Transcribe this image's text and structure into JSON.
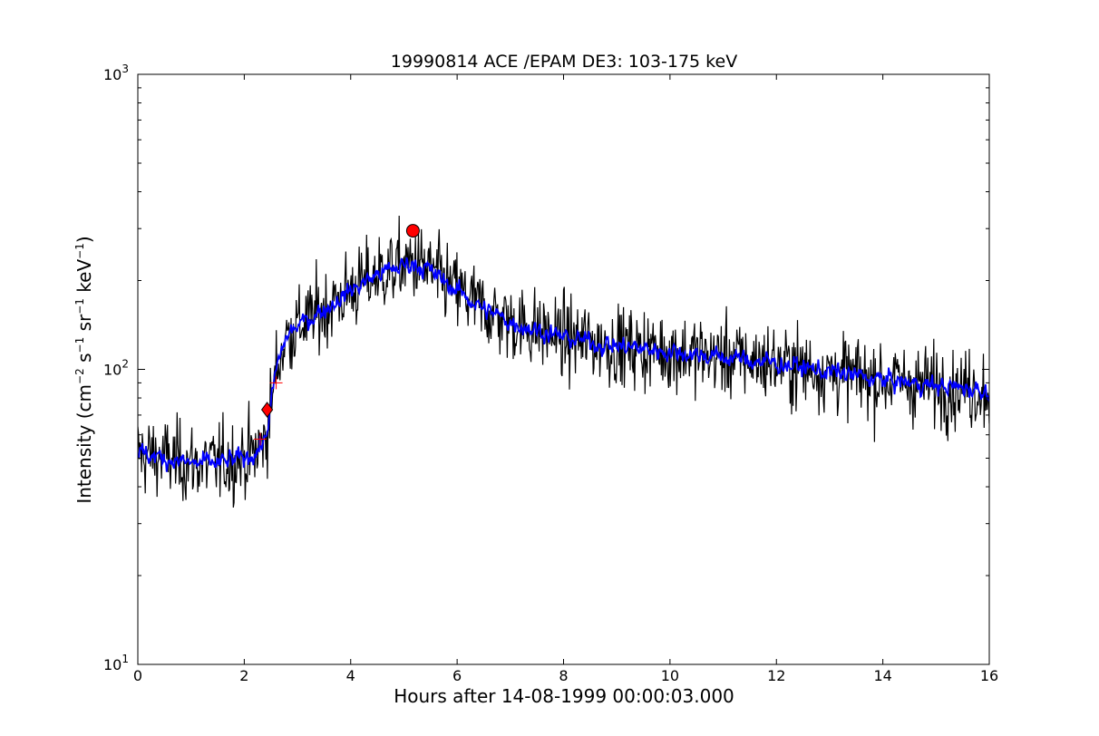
{
  "chart_data": {
    "type": "line",
    "title": "19990814 ACE /EPAM DE3: 103-175 keV",
    "xlabel": "Hours after 14-08-1999 00:00:03.000",
    "ylabel_parts": {
      "prefix": "Intensity (cm",
      "exp1": "−2",
      "mid1": "s",
      "exp2": "−1",
      "mid2": "sr",
      "exp3": "−1",
      "mid3": "keV",
      "exp4": "−1",
      "suffix": ")"
    },
    "xlim": [
      0,
      16
    ],
    "ylim": [
      10,
      1000
    ],
    "yscale": "log",
    "grid": false,
    "x_ticks": [
      0,
      2,
      4,
      6,
      8,
      10,
      12,
      14,
      16
    ],
    "x_tick_labels": [
      "0",
      "2",
      "4",
      "6",
      "8",
      "10",
      "12",
      "14",
      "16"
    ],
    "y_ticks": [
      10,
      100,
      1000
    ],
    "y_tick_labels": [
      {
        "base": "10",
        "exp": "1"
      },
      {
        "base": "10",
        "exp": "2"
      },
      {
        "base": "10",
        "exp": "3"
      }
    ],
    "series": [
      {
        "color": "#000000",
        "style": "raw",
        "trend": {
          "x": [
            0,
            0.5,
            1,
            1.5,
            2,
            2.2,
            2.4,
            2.5,
            2.6,
            2.8,
            3,
            3.5,
            4,
            4.5,
            5,
            5.2,
            5.5,
            6,
            6.5,
            7,
            8,
            9,
            10,
            11,
            12,
            13,
            14,
            15,
            16
          ],
          "y": [
            52,
            50,
            48,
            48,
            50,
            52,
            58,
            75,
            100,
            130,
            140,
            160,
            185,
            210,
            225,
            230,
            215,
            185,
            160,
            145,
            128,
            120,
            115,
            110,
            105,
            98,
            92,
            88,
            85
          ]
        },
        "noise": 0.22
      },
      {
        "color": "#0000ff",
        "style": "smoothed",
        "trend": {
          "x": [
            0,
            0.5,
            1,
            1.5,
            2,
            2.2,
            2.4,
            2.5,
            2.6,
            2.8,
            3,
            3.5,
            4,
            4.5,
            5,
            5.2,
            5.5,
            6,
            6.5,
            7,
            8,
            9,
            10,
            11,
            12,
            13,
            14,
            15,
            16
          ],
          "y": [
            52,
            50,
            48,
            48,
            50,
            52,
            58,
            75,
            100,
            130,
            140,
            160,
            185,
            210,
            225,
            230,
            215,
            185,
            160,
            145,
            128,
            120,
            115,
            110,
            105,
            98,
            92,
            88,
            85
          ]
        },
        "noise": 0.1
      }
    ],
    "markers": [
      {
        "shape": "circle",
        "x": 5.17,
        "y": 295,
        "color": "#ff0000"
      },
      {
        "shape": "diamond",
        "x": 2.43,
        "y": 73,
        "color": "#ff0000"
      },
      {
        "shape": "plus",
        "x": 2.3,
        "y": 58,
        "color": "#ff0000"
      },
      {
        "shape": "plus",
        "x": 2.6,
        "y": 90,
        "color": "#ff0000"
      }
    ]
  }
}
